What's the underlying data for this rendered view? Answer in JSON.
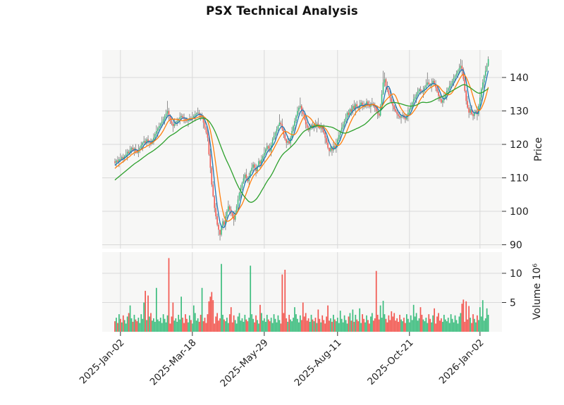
{
  "title": "PSX Technical Analysis",
  "labels": {
    "price_axis": "Price",
    "volume_axis": "Volume 10⁶"
  },
  "chart_data": {
    "type": "candlestick+volume",
    "title": "PSX Technical Analysis",
    "grid": true,
    "price_axis": {
      "label": "Price",
      "side": "right",
      "ticks": [
        90,
        100,
        110,
        120,
        130,
        140
      ],
      "range": [
        88.8,
        148.2
      ]
    },
    "volume_axis": {
      "label": "Volume 10⁶",
      "side": "right",
      "ticks": [
        5,
        10
      ],
      "unit": "millions",
      "range": [
        0,
        13.6
      ]
    },
    "x_axis": {
      "tick_labels": [
        "2025-Jan-02",
        "2025-Mar-18",
        "2025-May-29",
        "2025-Aug-11",
        "2025-Oct-21",
        "2026-Jan-02"
      ],
      "tick_indices": [
        4,
        56,
        108,
        161,
        213,
        264
      ],
      "label_rotation_deg": 45
    },
    "moving_averages": [
      {
        "name": "ma-short",
        "window": 5,
        "color": "#1f77b4"
      },
      {
        "name": "ma-medium",
        "window": 10,
        "color": "#ff7f0e"
      },
      {
        "name": "ma-long",
        "window": 30,
        "color": "#2ca02c"
      }
    ],
    "ma_prehistory": {
      "days": 30,
      "start": 104,
      "end": 114
    },
    "colors": {
      "up": "#3cbd7e",
      "down": "#f25750",
      "wick": "#757575",
      "grid": "#d9d9d9",
      "panel_bg": "#f7f7f6",
      "text": "#222222",
      "ma_short": "#1f77b4",
      "ma_medium": "#ff7f0e",
      "ma_long": "#2ca02c"
    },
    "closes": [
      114.5,
      115.2,
      114.8,
      115.6,
      115.5,
      116.2,
      115.8,
      116.6,
      117.0,
      117.8,
      117.4,
      118.4,
      119.0,
      118.2,
      118.8,
      117.9,
      117.5,
      118.3,
      119.0,
      119.8,
      120.5,
      121.0,
      120.4,
      121.5,
      120.6,
      120.9,
      120.2,
      121.2,
      122.0,
      123.1,
      124.0,
      124.8,
      125.5,
      126.2,
      126.8,
      127.5,
      128.4,
      129.2,
      130.0,
      128.6,
      127.0,
      126.2,
      125.5,
      126.1,
      126.6,
      127.0,
      127.6,
      128.1,
      128.5,
      128.0,
      127.6,
      127.2,
      127.0,
      127.4,
      127.8,
      127.5,
      128.0,
      128.5,
      129.0,
      129.3,
      129.5,
      128.8,
      128.0,
      128.3,
      126.5,
      125.0,
      123.5,
      122.0,
      117.0,
      113.0,
      108.0,
      104.5,
      101.0,
      98.5,
      96.0,
      94.5,
      93.0,
      95.5,
      97.0,
      96.0,
      98.5,
      100.0,
      101.5,
      100.5,
      99.5,
      98.5,
      97.5,
      99.5,
      101.5,
      103.5,
      105.5,
      107.0,
      108.5,
      109.8,
      111.0,
      110.0,
      109.0,
      110.5,
      112.0,
      113.0,
      114.0,
      113.0,
      112.0,
      113.5,
      115.0,
      114.2,
      115.5,
      116.5,
      117.5,
      118.5,
      119.5,
      118.8,
      118.0,
      119.8,
      121.5,
      122.5,
      123.5,
      124.5,
      125.5,
      126.5,
      126.0,
      124.5,
      123.0,
      121.5,
      120.5,
      121.0,
      120.3,
      122.0,
      124.0,
      125.5,
      127.0,
      128.5,
      130.0,
      131.0,
      131.5,
      130.0,
      129.0,
      127.5,
      126.0,
      125.0,
      124.2,
      125.0,
      125.8,
      125.0,
      126.0,
      125.2,
      126.2,
      125.5,
      124.8,
      125.5,
      124.5,
      123.5,
      122.0,
      120.5,
      119.0,
      118.0,
      119.0,
      118.2,
      119.5,
      118.8,
      120.0,
      121.5,
      122.8,
      124.0,
      125.0,
      126.0,
      127.0,
      128.0,
      129.5,
      128.8,
      130.5,
      129.8,
      131.5,
      130.5,
      132.0,
      131.2,
      130.8,
      131.8,
      132.5,
      131.8,
      131.2,
      132.0,
      132.8,
      131.8,
      131.2,
      132.0,
      132.2,
      131.5,
      130.8,
      130.0,
      129.2,
      128.6,
      131.5,
      135.0,
      138.5,
      139.5,
      137.5,
      136.2,
      135.0,
      133.8,
      132.5,
      131.5,
      130.5,
      129.8,
      129.0,
      128.5,
      128.0,
      128.4,
      128.8,
      128.0,
      127.5,
      128.5,
      129.5,
      130.5,
      131.5,
      132.5,
      133.5,
      134.2,
      135.0,
      135.8,
      136.5,
      136.0,
      135.5,
      136.2,
      137.0,
      137.8,
      138.5,
      138.0,
      137.5,
      138.2,
      139.0,
      138.0,
      137.0,
      135.8,
      134.5,
      133.5,
      132.5,
      133.2,
      134.0,
      135.0,
      136.0,
      136.8,
      137.5,
      138.2,
      139.0,
      139.8,
      140.5,
      141.2,
      142.0,
      142.8,
      143.5,
      142.5,
      139.5,
      136.0,
      133.0,
      131.0,
      129.5,
      130.5,
      129.0,
      128.5,
      129.5,
      130.0,
      129.0,
      131.5,
      134.0,
      136.5,
      138.5,
      140.5,
      142.0,
      143.5,
      145.5
    ],
    "wick_high_pattern": [
      0.9,
      0.4,
      1.3,
      0.6,
      1.7,
      0.5,
      1.0,
      0.3,
      1.5,
      0.8,
      0.6,
      1.2,
      0.4
    ],
    "wick_low_pattern": [
      0.5,
      1.1,
      0.4,
      1.6,
      0.7,
      0.3,
      1.3,
      0.9,
      0.5,
      1.8,
      0.6
    ],
    "wick_overrides": {
      "38": [
        133.0,
        128.0
      ],
      "76": [
        94.0,
        91.3
      ],
      "119": [
        129.0,
        125.5
      ],
      "134": [
        134.0,
        130.5
      ],
      "155": [
        119.0,
        116.5
      ],
      "194": [
        142.0,
        134.8
      ],
      "195": [
        141.5,
        137.2
      ],
      "226": [
        141.5,
        137.5
      ],
      "250": [
        145.5,
        142.2
      ],
      "270": [
        146.3,
        143.2
      ]
    },
    "volume_base_pattern": [
      1.8,
      2.4,
      1.5,
      3.0,
      2.2,
      1.6,
      2.8,
      2.0,
      1.4,
      2.6,
      3.2,
      1.9,
      2.3,
      1.7,
      2.9,
      2.1
    ],
    "volume_spikes": {
      "11": 4.5,
      "21": 5.0,
      "22": 7.0,
      "24": 6.2,
      "30": 7.5,
      "39": 12.6,
      "42": 5.0,
      "48": 6.0,
      "57": 4.5,
      "63": 7.5,
      "68": 5.2,
      "69": 6.0,
      "70": 6.8,
      "71": 5.4,
      "77": 11.6,
      "84": 4.2,
      "98": 11.3,
      "105": 4.6,
      "121": 9.8,
      "123": 10.6,
      "130": 4.2,
      "136": 5.0,
      "147": 3.8,
      "154": 4.5,
      "163": 3.6,
      "172": 3.8,
      "177": 4.0,
      "189": 10.4,
      "192": 4.5,
      "194": 5.3,
      "200": 3.5,
      "216": 4.6,
      "221": 4.2,
      "231": 4.0,
      "251": 4.8,
      "252": 5.5,
      "254": 5.2,
      "256": 4.4,
      "264": 4.2,
      "266": 5.4,
      "269": 4.0
    }
  }
}
